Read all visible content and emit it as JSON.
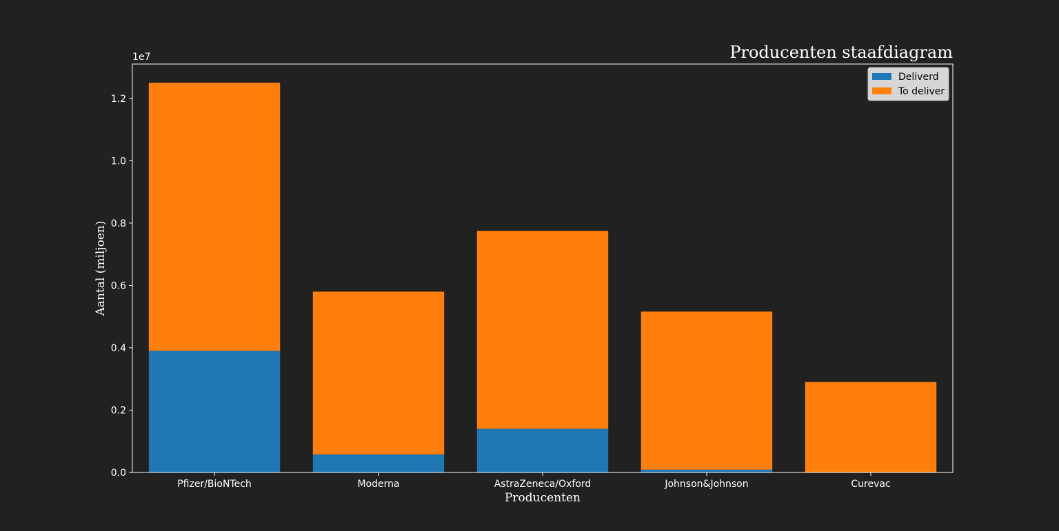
{
  "chart_data": {
    "type": "bar",
    "stacked": true,
    "title": "Producenten staafdiagram",
    "xlabel": "Producenten",
    "ylabel": "Aantal (miljoen)",
    "y_offset_label": "1e7",
    "y_scale": 10000000,
    "categories": [
      "Pfizer/BioNTech",
      "Moderna",
      "AstraZeneca/Oxford",
      "Johnson&Johnson",
      "Curevac"
    ],
    "series": [
      {
        "name": "Deliverd",
        "color": "#1f77b4",
        "values": [
          3900000,
          580000,
          1400000,
          90000,
          0
        ]
      },
      {
        "name": "To deliver",
        "color": "#ff7f0e",
        "values": [
          8600000,
          5220000,
          6350000,
          5070000,
          2900000
        ]
      }
    ],
    "ylim": [
      0,
      13100000
    ],
    "yticks": [
      "0.0",
      "0.2",
      "0.4",
      "0.6",
      "0.8",
      "1.0",
      "1.2"
    ],
    "ytick_values": [
      0,
      0.2,
      0.4,
      0.6,
      0.8,
      1.0,
      1.2
    ],
    "grid": false,
    "legend_position": "upper right",
    "background": "#212121",
    "plot_background": "#212121",
    "axis_color": "#ffffff"
  }
}
